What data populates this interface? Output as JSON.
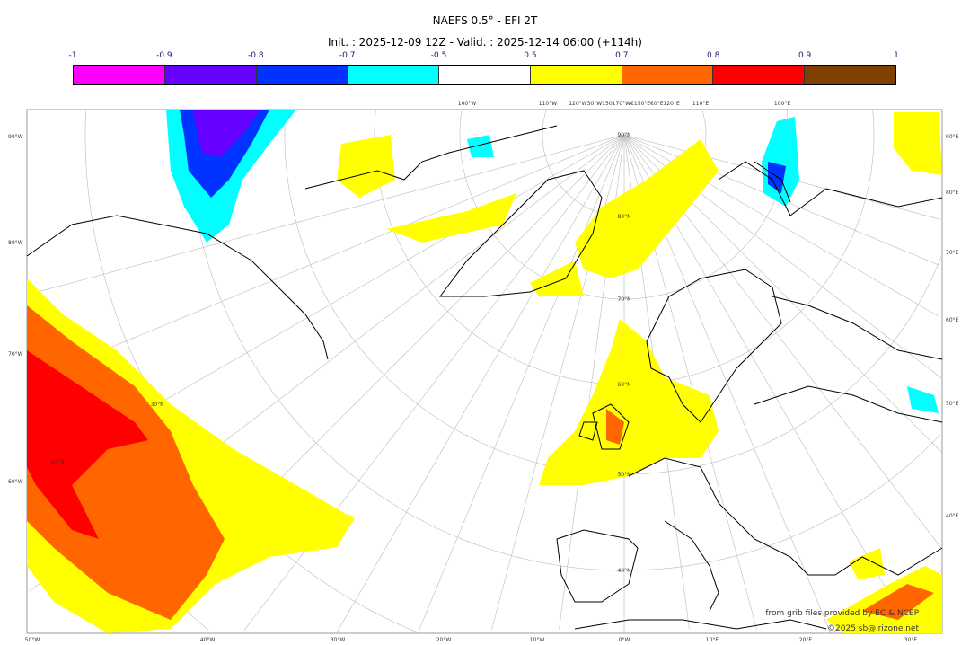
{
  "title": "NAEFS 0.5° - EFI 2T",
  "subtitle": "Init. : 2025-12-09 12Z - Valid. : 2025-12-14 06:00 (+114h)",
  "colorbar": {
    "ticks": [
      "-1",
      "-0.9",
      "-0.8",
      "-0.7",
      "-0.5",
      "0.5",
      "0.7",
      "0.8",
      "0.9",
      "1"
    ],
    "colors": [
      "#ff00ff",
      "#6600ff",
      "#0033ff",
      "#00ffff",
      "#ffffff",
      "#ffff00",
      "#ff6600",
      "#ff0000",
      "#804000"
    ]
  },
  "graticule": {
    "left": [
      "90°W",
      "80°W",
      "70°W",
      "60°W"
    ],
    "right": [
      "90°E",
      "80°E",
      "70°E",
      "60°E",
      "50°E",
      "40°E"
    ],
    "bottom": [
      "50°W",
      "40°W",
      "30°W",
      "20°W",
      "10°W",
      "0°W",
      "10°E",
      "20°E",
      "30°E"
    ],
    "top": [
      "100°W",
      "110°W",
      "120°W30°W150170°W€150°E€0°E120°E",
      "110°E",
      "100°E"
    ],
    "lat": [
      "90°N",
      "80°N",
      "70°N",
      "60°N",
      "50°N",
      "40°N",
      "30°N",
      "20°N"
    ]
  },
  "credits": [
    "from grib files provided by EC & NCEP",
    "©2025 sb@irizone.net"
  ]
}
